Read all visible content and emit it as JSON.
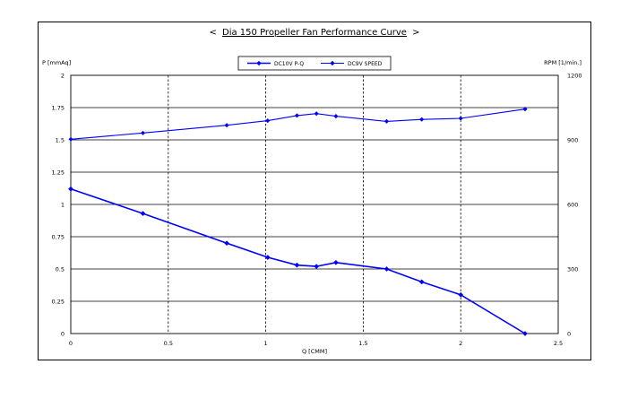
{
  "chart_data": {
    "type": "line",
    "title": "< Dia 150 Propeller Fan Performance Curve >",
    "title_prefix": "<",
    "title_main": "Dia 150 Propeller Fan Performance Curve",
    "title_suffix": ">",
    "xlabel": "Q [CMM]",
    "ylabel_left": "P [mmAq]",
    "ylabel_right": "RPM [1/min.]",
    "xlim": [
      0,
      2.5
    ],
    "ylim_left": [
      0,
      2
    ],
    "ylim_right": [
      0,
      1200
    ],
    "x_ticks": [
      "0",
      "0.5",
      "1",
      "1.5",
      "2",
      "2.5"
    ],
    "y_left_ticks": [
      "0",
      "0.25",
      "0.5",
      "0.75",
      "1",
      "1.25",
      "1.5",
      "1.75",
      "2"
    ],
    "y_right_ticks": [
      "0",
      "300",
      "600",
      "900",
      "1200"
    ],
    "legend_position": "top-center",
    "grid": {
      "horizontal": "solid",
      "vertical": "dashed"
    },
    "series": [
      {
        "name": "DC10V P-Q",
        "axis": "left",
        "color": "#0000ff",
        "marker": "diamond",
        "points": [
          [
            0,
            1.12
          ],
          [
            0.37,
            0.93
          ],
          [
            0.8,
            0.7
          ],
          [
            1.01,
            0.59
          ],
          [
            1.16,
            0.53
          ],
          [
            1.26,
            0.52
          ],
          [
            1.36,
            0.55
          ],
          [
            1.62,
            0.5
          ],
          [
            1.8,
            0.4
          ],
          [
            2.0,
            0.3
          ],
          [
            2.33,
            0.0
          ]
        ]
      },
      {
        "name": "DC9V SPEED",
        "axis": "right",
        "color": "#0000ff",
        "marker": "diamond",
        "points": [
          [
            0,
            903
          ],
          [
            0.37,
            932
          ],
          [
            0.8,
            968
          ],
          [
            1.01,
            989
          ],
          [
            1.16,
            1013
          ],
          [
            1.26,
            1022
          ],
          [
            1.36,
            1010
          ],
          [
            1.62,
            986
          ],
          [
            1.8,
            995
          ],
          [
            2.0,
            1000
          ],
          [
            2.33,
            1043
          ]
        ]
      }
    ]
  }
}
